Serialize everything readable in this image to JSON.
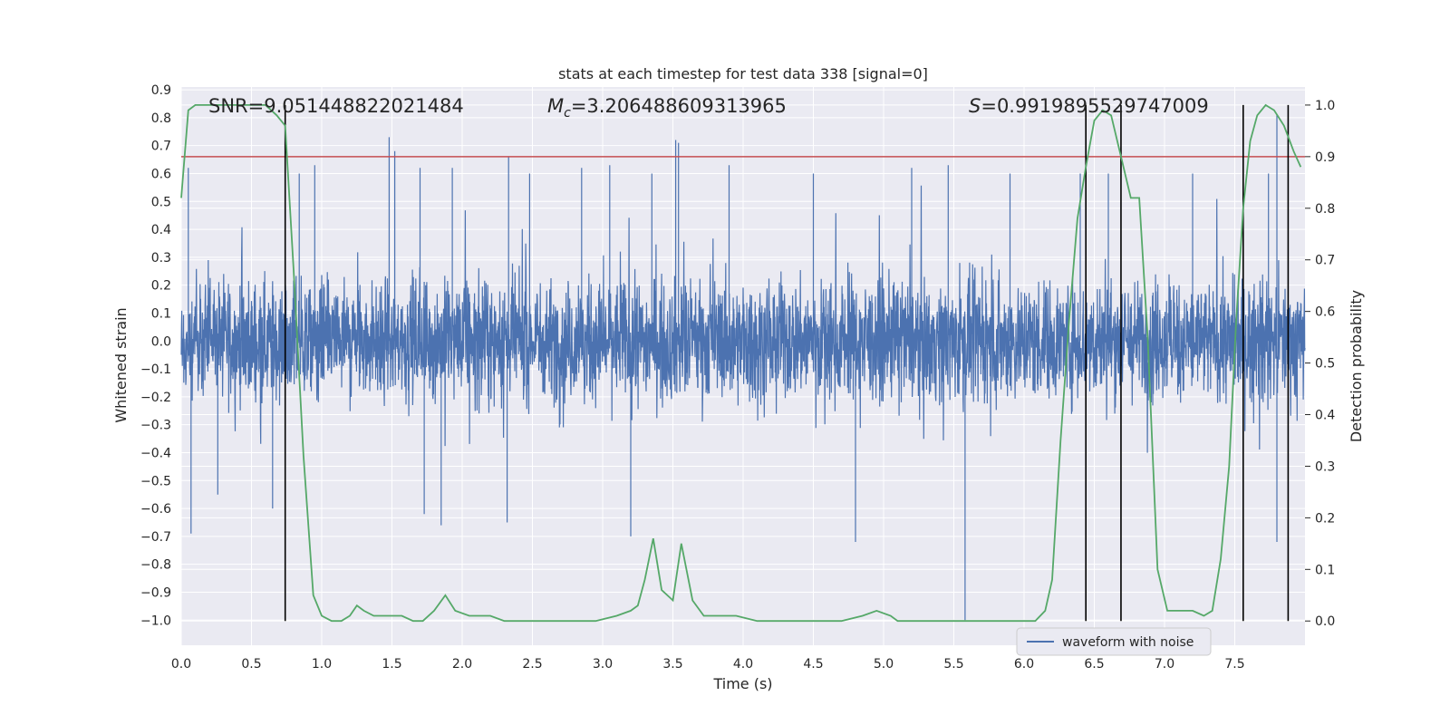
{
  "chart_data": {
    "type": "line",
    "title": "stats at each timestep for test data 338 [signal=0]",
    "xlabel": "Time (s)",
    "ylabel": "Whitened strain",
    "y2label": "Detection probability",
    "xlim": [
      0.0,
      8.0
    ],
    "ylim": [
      -1.09,
      0.91
    ],
    "y2lim": [
      -0.047,
      1.035
    ],
    "x_ticks": [
      "0.0",
      "0.5",
      "1.0",
      "1.5",
      "2.0",
      "2.5",
      "3.0",
      "3.5",
      "4.0",
      "4.5",
      "5.0",
      "5.5",
      "6.0",
      "6.5",
      "7.0",
      "7.5"
    ],
    "y_ticks": [
      "0.9",
      "0.8",
      "0.7",
      "0.6",
      "0.5",
      "0.4",
      "0.3",
      "0.2",
      "0.1",
      "0.0",
      "-0.1",
      "-0.2",
      "-0.3",
      "-0.4",
      "-0.5",
      "-0.6",
      "-0.7",
      "-0.8",
      "-0.9",
      "-1.0"
    ],
    "y2_ticks": [
      "0.0",
      "0.1",
      "0.2",
      "0.3",
      "0.4",
      "0.5",
      "0.6",
      "0.7",
      "0.8",
      "0.9",
      "1.0"
    ],
    "grid": true,
    "legend_position": "lower-right",
    "annotations": {
      "snr": "SNR=9.051448822021484",
      "mc_symbol": "M",
      "mc_sub": "c",
      "mc_value": "=3.206488609313965",
      "s_symbol": "S",
      "s_value": "=0.9919895529747009"
    },
    "threshold": {
      "value": 0.9,
      "axis": "right",
      "color": "#c44e52"
    },
    "vertical_lines_x": [
      0.74,
      6.44,
      6.69,
      7.56,
      7.88
    ],
    "series": [
      {
        "name": "waveform with noise",
        "color": "#4c72b0",
        "style": "dense noise, amplitude mostly within ±0.3, spikes to about ±0.72",
        "spikes": [
          [
            0.05,
            0.62
          ],
          [
            0.07,
            -0.69
          ],
          [
            0.26,
            -0.55
          ],
          [
            0.65,
            -0.6
          ],
          [
            0.74,
            0.55
          ],
          [
            0.84,
            0.6
          ],
          [
            0.95,
            0.63
          ],
          [
            1.48,
            0.73
          ],
          [
            1.52,
            0.68
          ],
          [
            1.7,
            0.62
          ],
          [
            1.73,
            -0.62
          ],
          [
            1.85,
            -0.66
          ],
          [
            1.93,
            0.62
          ],
          [
            2.33,
            0.66
          ],
          [
            2.32,
            -0.65
          ],
          [
            2.48,
            0.6
          ],
          [
            2.85,
            0.62
          ],
          [
            3.05,
            0.63
          ],
          [
            3.2,
            -0.7
          ],
          [
            3.35,
            0.6
          ],
          [
            3.52,
            0.72
          ],
          [
            3.54,
            0.71
          ],
          [
            3.9,
            0.63
          ],
          [
            4.5,
            0.6
          ],
          [
            4.8,
            -0.72
          ],
          [
            5.2,
            0.62
          ],
          [
            5.46,
            0.63
          ],
          [
            5.58,
            -1.0
          ],
          [
            5.9,
            0.6
          ],
          [
            6.4,
            0.6
          ],
          [
            6.6,
            0.6
          ],
          [
            7.2,
            0.6
          ],
          [
            7.74,
            0.6
          ],
          [
            7.8,
            0.81
          ],
          [
            7.8,
            -0.72
          ]
        ]
      },
      {
        "name": "",
        "axis": "right",
        "color": "#55a868",
        "x": [
          0.0,
          0.05,
          0.1,
          0.2,
          0.3,
          0.4,
          0.5,
          0.6,
          0.68,
          0.74,
          0.8,
          0.87,
          0.94,
          1.0,
          1.07,
          1.14,
          1.2,
          1.25,
          1.3,
          1.37,
          1.45,
          1.5,
          1.57,
          1.65,
          1.72,
          1.8,
          1.88,
          1.95,
          2.05,
          2.2,
          2.3,
          2.5,
          2.7,
          2.95,
          3.1,
          3.2,
          3.25,
          3.3,
          3.36,
          3.42,
          3.5,
          3.56,
          3.64,
          3.72,
          3.8,
          3.95,
          4.1,
          4.3,
          4.5,
          4.7,
          4.85,
          4.95,
          5.05,
          5.1,
          5.3,
          5.5,
          5.8,
          6.0,
          6.08,
          6.15,
          6.2,
          6.26,
          6.32,
          6.38,
          6.44,
          6.5,
          6.56,
          6.62,
          6.69,
          6.76,
          6.82,
          6.88,
          6.95,
          7.02,
          7.1,
          7.2,
          7.28,
          7.34,
          7.4,
          7.46,
          7.51,
          7.56,
          7.61,
          7.66,
          7.72,
          7.78,
          7.85,
          7.92,
          7.97
        ],
        "y": [
          0.82,
          0.99,
          1.0,
          1.0,
          1.0,
          1.0,
          1.0,
          1.0,
          0.98,
          0.96,
          0.68,
          0.32,
          0.05,
          0.01,
          0.0,
          0.0,
          0.01,
          0.03,
          0.02,
          0.01,
          0.01,
          0.01,
          0.01,
          0.0,
          0.0,
          0.02,
          0.05,
          0.02,
          0.01,
          0.01,
          0.0,
          0.0,
          0.0,
          0.0,
          0.01,
          0.02,
          0.03,
          0.08,
          0.16,
          0.06,
          0.04,
          0.15,
          0.04,
          0.01,
          0.01,
          0.01,
          0.0,
          0.0,
          0.0,
          0.0,
          0.01,
          0.02,
          0.01,
          0.0,
          0.0,
          0.0,
          0.0,
          0.0,
          0.0,
          0.02,
          0.08,
          0.35,
          0.58,
          0.78,
          0.88,
          0.97,
          0.99,
          0.98,
          0.9,
          0.82,
          0.82,
          0.55,
          0.1,
          0.02,
          0.02,
          0.02,
          0.01,
          0.02,
          0.12,
          0.3,
          0.58,
          0.8,
          0.93,
          0.98,
          1.0,
          0.99,
          0.96,
          0.91,
          0.88
        ]
      }
    ]
  }
}
